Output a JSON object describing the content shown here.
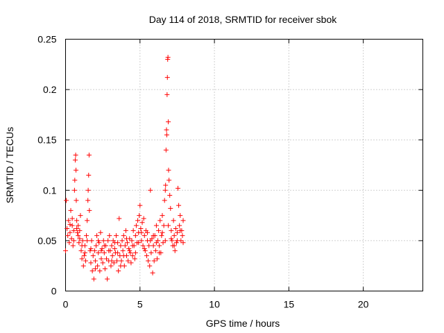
{
  "chart_data": {
    "type": "scatter",
    "title": "Day 114 of 2018, SRMTID for receiver sbok",
    "xlabel": "GPS time / hours",
    "ylabel": "SRMTID / TECUs",
    "xlim": [
      0,
      24
    ],
    "ylim": [
      0,
      0.25
    ],
    "xticks": [
      0,
      5,
      10,
      15,
      20
    ],
    "xtick_labels": [
      "0",
      "5",
      "10",
      "15",
      "20"
    ],
    "yticks": [
      0,
      0.05,
      0.1,
      0.15,
      0.2,
      0.25
    ],
    "ytick_labels": [
      "0",
      "0.05",
      "0.1",
      "0.15",
      "0.2",
      "0.25"
    ],
    "grid": true,
    "marker": "+",
    "series": [
      {
        "name": "SRMTID",
        "color": "#ff0000",
        "points": [
          [
            0.0,
            0.04
          ],
          [
            0.05,
            0.09
          ],
          [
            0.1,
            0.062
          ],
          [
            0.15,
            0.055
          ],
          [
            0.2,
            0.07
          ],
          [
            0.25,
            0.048
          ],
          [
            0.3,
            0.058
          ],
          [
            0.35,
            0.08
          ],
          [
            0.4,
            0.052
          ],
          [
            0.45,
            0.065
          ],
          [
            0.5,
            0.045
          ],
          [
            0.55,
            0.06
          ],
          [
            0.6,
            0.1
          ],
          [
            0.62,
            0.11
          ],
          [
            0.65,
            0.13
          ],
          [
            0.68,
            0.135
          ],
          [
            0.7,
            0.12
          ],
          [
            0.72,
            0.09
          ],
          [
            0.75,
            0.07
          ],
          [
            0.8,
            0.058
          ],
          [
            0.85,
            0.065
          ],
          [
            0.9,
            0.048
          ],
          [
            0.95,
            0.06
          ],
          [
            1.0,
            0.075
          ],
          [
            1.05,
            0.04
          ],
          [
            1.1,
            0.032
          ],
          [
            1.15,
            0.05
          ],
          [
            1.2,
            0.025
          ],
          [
            1.25,
            0.035
          ],
          [
            1.3,
            0.045
          ],
          [
            1.35,
            0.03
          ],
          [
            1.4,
            0.055
          ],
          [
            1.45,
            0.07
          ],
          [
            1.5,
            0.09
          ],
          [
            1.52,
            0.1
          ],
          [
            1.55,
            0.115
          ],
          [
            1.58,
            0.135
          ],
          [
            1.6,
            0.08
          ],
          [
            1.65,
            0.04
          ],
          [
            1.7,
            0.028
          ],
          [
            1.75,
            0.05
          ],
          [
            1.8,
            0.02
          ],
          [
            1.85,
            0.035
          ],
          [
            1.9,
            0.012
          ],
          [
            1.95,
            0.04
          ],
          [
            2.0,
            0.03
          ],
          [
            2.05,
            0.045
          ],
          [
            2.1,
            0.055
          ],
          [
            2.15,
            0.025
          ],
          [
            2.2,
            0.038
          ],
          [
            2.25,
            0.048
          ],
          [
            2.3,
            0.02
          ],
          [
            2.35,
            0.058
          ],
          [
            2.4,
            0.032
          ],
          [
            2.45,
            0.042
          ],
          [
            2.5,
            0.028
          ],
          [
            2.55,
            0.05
          ],
          [
            2.6,
            0.038
          ],
          [
            2.65,
            0.022
          ],
          [
            2.7,
            0.045
          ],
          [
            2.75,
            0.032
          ],
          [
            2.8,
            0.012
          ],
          [
            2.85,
            0.05
          ],
          [
            2.9,
            0.03
          ],
          [
            2.95,
            0.055
          ],
          [
            3.0,
            0.04
          ],
          [
            3.05,
            0.025
          ],
          [
            3.1,
            0.045
          ],
          [
            3.15,
            0.035
          ],
          [
            3.2,
            0.05
          ],
          [
            3.25,
            0.028
          ],
          [
            3.3,
            0.042
          ],
          [
            3.35,
            0.038
          ],
          [
            3.4,
            0.055
          ],
          [
            3.45,
            0.03
          ],
          [
            3.5,
            0.048
          ],
          [
            3.55,
            0.02
          ],
          [
            3.6,
            0.072
          ],
          [
            3.65,
            0.035
          ],
          [
            3.7,
            0.045
          ],
          [
            3.75,
            0.03
          ],
          [
            3.8,
            0.05
          ],
          [
            3.85,
            0.04
          ],
          [
            3.9,
            0.055
          ],
          [
            3.95,
            0.025
          ],
          [
            4.0,
            0.045
          ],
          [
            4.05,
            0.06
          ],
          [
            4.1,
            0.035
          ],
          [
            4.15,
            0.048
          ],
          [
            4.2,
            0.03
          ],
          [
            4.25,
            0.042
          ],
          [
            4.3,
            0.052
          ],
          [
            4.35,
            0.038
          ],
          [
            4.4,
            0.028
          ],
          [
            4.45,
            0.05
          ],
          [
            4.5,
            0.035
          ],
          [
            4.55,
            0.06
          ],
          [
            4.6,
            0.045
          ],
          [
            4.65,
            0.032
          ],
          [
            4.7,
            0.055
          ],
          [
            4.75,
            0.065
          ],
          [
            4.8,
            0.048
          ],
          [
            4.85,
            0.07
          ],
          [
            4.9,
            0.058
          ],
          [
            4.95,
            0.075
          ],
          [
            5.0,
            0.085
          ],
          [
            5.05,
            0.062
          ],
          [
            5.1,
            0.05
          ],
          [
            5.15,
            0.068
          ],
          [
            5.2,
            0.045
          ],
          [
            5.25,
            0.072
          ],
          [
            5.3,
            0.055
          ],
          [
            5.35,
            0.04
          ],
          [
            5.4,
            0.06
          ],
          [
            5.45,
            0.035
          ],
          [
            5.5,
            0.05
          ],
          [
            5.55,
            0.03
          ],
          [
            5.6,
            0.045
          ],
          [
            5.65,
            0.025
          ],
          [
            5.7,
            0.1
          ],
          [
            5.75,
            0.038
          ],
          [
            5.8,
            0.052
          ],
          [
            5.85,
            0.018
          ],
          [
            5.9,
            0.045
          ],
          [
            5.95,
            0.03
          ],
          [
            6.0,
            0.055
          ],
          [
            6.05,
            0.04
          ],
          [
            6.1,
            0.065
          ],
          [
            6.15,
            0.032
          ],
          [
            6.2,
            0.05
          ],
          [
            6.25,
            0.06
          ],
          [
            6.3,
            0.045
          ],
          [
            6.35,
            0.07
          ],
          [
            6.4,
            0.038
          ],
          [
            6.45,
            0.055
          ],
          [
            6.5,
            0.075
          ],
          [
            6.55,
            0.048
          ],
          [
            6.6,
            0.065
          ],
          [
            6.65,
            0.09
          ],
          [
            6.7,
            0.1
          ],
          [
            6.72,
            0.105
          ],
          [
            6.75,
            0.14
          ],
          [
            6.78,
            0.16
          ],
          [
            6.8,
            0.155
          ],
          [
            6.82,
            0.195
          ],
          [
            6.84,
            0.212
          ],
          [
            6.86,
            0.23
          ],
          [
            6.88,
            0.232
          ],
          [
            6.9,
            0.168
          ],
          [
            6.92,
            0.12
          ],
          [
            6.95,
            0.11
          ],
          [
            7.0,
            0.095
          ],
          [
            7.05,
            0.082
          ],
          [
            7.1,
            0.06
          ],
          [
            7.15,
            0.05
          ],
          [
            7.2,
            0.045
          ],
          [
            7.25,
            0.07
          ],
          [
            7.3,
            0.055
          ],
          [
            7.35,
            0.04
          ],
          [
            7.4,
            0.062
          ],
          [
            7.45,
            0.048
          ],
          [
            7.5,
            0.058
          ],
          [
            7.55,
            0.102
          ],
          [
            7.6,
            0.085
          ],
          [
            7.65,
            0.065
          ],
          [
            7.7,
            0.075
          ],
          [
            7.75,
            0.05
          ],
          [
            7.8,
            0.06
          ],
          [
            7.85,
            0.055
          ],
          [
            7.9,
            0.07
          ],
          [
            0.3,
            0.066
          ],
          [
            0.45,
            0.072
          ],
          [
            0.55,
            0.05
          ],
          [
            0.75,
            0.062
          ],
          [
            0.85,
            0.055
          ],
          [
            0.95,
            0.052
          ],
          [
            1.1,
            0.045
          ],
          [
            1.3,
            0.038
          ],
          [
            1.45,
            0.05
          ],
          [
            1.7,
            0.042
          ],
          [
            2.0,
            0.022
          ],
          [
            2.2,
            0.05
          ],
          [
            2.4,
            0.04
          ],
          [
            2.6,
            0.045
          ],
          [
            2.9,
            0.04
          ],
          [
            3.1,
            0.03
          ],
          [
            3.3,
            0.048
          ],
          [
            3.5,
            0.038
          ],
          [
            3.7,
            0.025
          ],
          [
            3.9,
            0.035
          ],
          [
            4.1,
            0.052
          ],
          [
            4.3,
            0.04
          ],
          [
            4.5,
            0.045
          ],
          [
            4.7,
            0.038
          ],
          [
            4.9,
            0.048
          ],
          [
            5.1,
            0.058
          ],
          [
            5.3,
            0.042
          ],
          [
            5.5,
            0.058
          ],
          [
            5.7,
            0.05
          ],
          [
            5.9,
            0.055
          ],
          [
            6.1,
            0.048
          ],
          [
            6.3,
            0.038
          ],
          [
            6.5,
            0.058
          ],
          [
            6.7,
            0.05
          ],
          [
            6.9,
            0.065
          ],
          [
            7.1,
            0.052
          ],
          [
            7.3,
            0.045
          ],
          [
            7.5,
            0.05
          ],
          [
            7.7,
            0.06
          ],
          [
            7.9,
            0.048
          ]
        ]
      }
    ]
  }
}
